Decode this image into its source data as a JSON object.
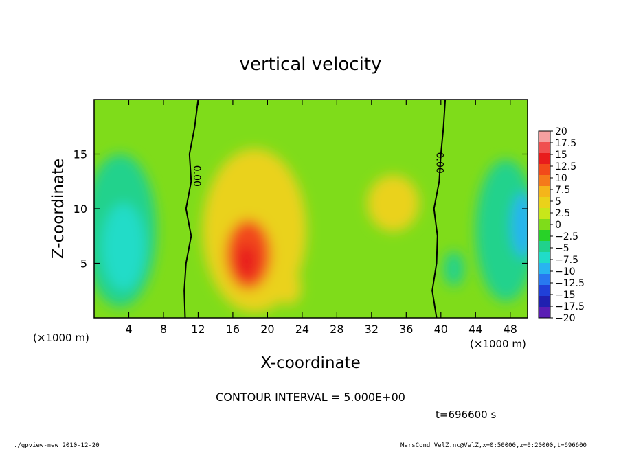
{
  "chart_data": {
    "type": "heatmap",
    "title": "vertical velocity",
    "xlabel": "X-coordinate",
    "ylabel": "Z-coordinate",
    "x_unit_left": "(×1000 m)",
    "x_unit_right": "(×1000 m)",
    "xlim": [
      0,
      50
    ],
    "ylim": [
      0,
      20
    ],
    "xticks": [
      4,
      8,
      12,
      16,
      20,
      24,
      28,
      32,
      36,
      40,
      44,
      48
    ],
    "xtick_labels": [
      "4",
      "8",
      "12",
      "16",
      "20",
      "24",
      "28",
      "32",
      "36",
      "40",
      "44",
      "48"
    ],
    "yticks": [
      5,
      10,
      15
    ],
    "ytick_labels": [
      "5",
      "10",
      "15"
    ],
    "colorbar": {
      "levels": [
        20,
        17.5,
        15,
        12.5,
        10,
        7.5,
        5,
        2.5,
        0,
        -2.5,
        -5,
        -7.5,
        -10,
        -12.5,
        -15,
        -17.5,
        -20
      ],
      "labels": [
        "20",
        "17.5",
        "15",
        "12.5",
        "10",
        "7.5",
        "5",
        "2.5",
        "0",
        "−2.5",
        "−5",
        "−7.5",
        "−10",
        "−12.5",
        "−15",
        "−17.5",
        "−20"
      ],
      "colors": [
        "#f5a0a0",
        "#f05050",
        "#e81c1c",
        "#f24a1a",
        "#f57a1a",
        "#f5b51a",
        "#ead21a",
        "#c8e61a",
        "#7fdc1a",
        "#28d228",
        "#20d28c",
        "#20dcc8",
        "#28b4f0",
        "#2878f0",
        "#2040d8",
        "#2020b0",
        "#5a1eb4"
      ]
    },
    "contour_interval_text": "CONTOUR INTERVAL = 5.000E+00",
    "contour_labels": [
      {
        "x": 11.5,
        "y": 13.0,
        "text": "0.00"
      },
      {
        "x": 39.5,
        "y": 14.2,
        "text": "0.00"
      }
    ],
    "blobs": [
      {
        "x": 3.0,
        "y": 8.0,
        "rx": 4.2,
        "ry": 7.0,
        "value": -5
      },
      {
        "x": 3.4,
        "y": 6.5,
        "rx": 2.5,
        "ry": 4.0,
        "value": -9
      },
      {
        "x": 47.5,
        "y": 8.0,
        "rx": 3.5,
        "ry": 6.5,
        "value": -5
      },
      {
        "x": 49.5,
        "y": 8.5,
        "rx": 1.4,
        "ry": 3.0,
        "value": -10
      },
      {
        "x": 41.5,
        "y": 4.5,
        "rx": 1.2,
        "ry": 1.6,
        "value": -6
      },
      {
        "x": 18.5,
        "y": 8.0,
        "rx": 6.0,
        "ry": 7.5,
        "value": 4.5
      },
      {
        "x": 17.8,
        "y": 5.8,
        "rx": 2.6,
        "ry": 3.2,
        "value": 11
      },
      {
        "x": 17.6,
        "y": 5.2,
        "rx": 1.2,
        "ry": 1.6,
        "value": 15
      },
      {
        "x": 22.5,
        "y": 2.8,
        "rx": 1.4,
        "ry": 1.6,
        "value": 4
      },
      {
        "x": 34.5,
        "y": 10.5,
        "rx": 3.0,
        "ry": 2.6,
        "value": 4
      }
    ],
    "zero_contours": [
      [
        [
          12.0,
          20.0
        ],
        [
          11.6,
          17.5
        ],
        [
          11.0,
          15.0
        ],
        [
          11.2,
          12.5
        ],
        [
          10.6,
          10.0
        ],
        [
          11.2,
          7.5
        ],
        [
          10.6,
          5.0
        ],
        [
          10.4,
          2.5
        ],
        [
          10.5,
          0.0
        ]
      ],
      [
        [
          40.5,
          20.0
        ],
        [
          40.3,
          17.5
        ],
        [
          40.0,
          15.0
        ],
        [
          39.8,
          12.5
        ],
        [
          39.2,
          10.0
        ],
        [
          39.6,
          7.5
        ],
        [
          39.5,
          5.0
        ],
        [
          39.0,
          2.5
        ],
        [
          39.5,
          0.0
        ]
      ]
    ],
    "timestamp": "t=696600 s",
    "footer_left": "./gpview-new  2010-12-20",
    "footer_right": "MarsCond_VelZ.nc@VelZ,x=0:50000,z=0:20000,t=696600"
  }
}
